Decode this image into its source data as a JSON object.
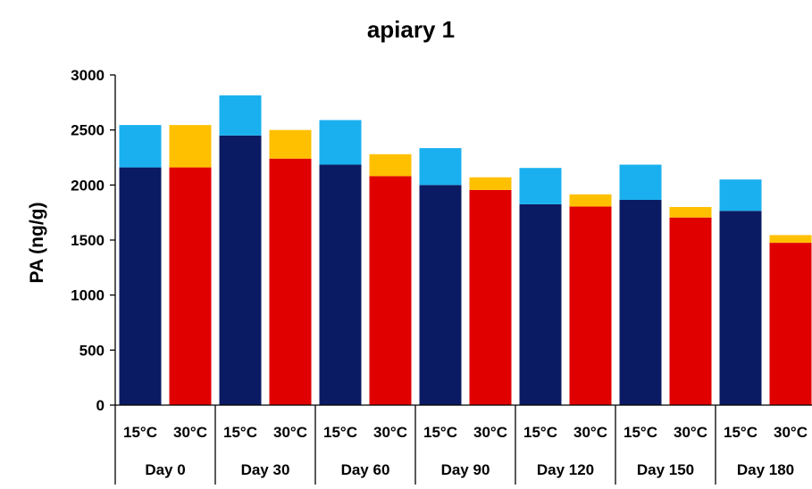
{
  "chart_data": {
    "type": "bar",
    "title": "apiary 1",
    "ylabel": "PA (ng/g)",
    "xlabel": "",
    "ylim": [
      0,
      3000
    ],
    "yticks": [
      0,
      500,
      1000,
      1500,
      2000,
      2500,
      3000
    ],
    "grid": false,
    "legend": "none",
    "groups": [
      "Day 0",
      "Day 30",
      "Day 60",
      "Day 90",
      "Day 120",
      "Day 150",
      "Day 180"
    ],
    "sub_categories": [
      "15°C",
      "30°C"
    ],
    "bars": [
      {
        "group": "Day 0",
        "temp": "15°C",
        "base": 2160,
        "total": 2545
      },
      {
        "group": "Day 0",
        "temp": "30°C",
        "base": 2160,
        "total": 2545
      },
      {
        "group": "Day 30",
        "temp": "15°C",
        "base": 2450,
        "total": 2815
      },
      {
        "group": "Day 30",
        "temp": "30°C",
        "base": 2240,
        "total": 2500
      },
      {
        "group": "Day 60",
        "temp": "15°C",
        "base": 2185,
        "total": 2590
      },
      {
        "group": "Day 60",
        "temp": "30°C",
        "base": 2080,
        "total": 2280
      },
      {
        "group": "Day 90",
        "temp": "15°C",
        "base": 2000,
        "total": 2335
      },
      {
        "group": "Day 90",
        "temp": "30°C",
        "base": 1955,
        "total": 2070
      },
      {
        "group": "Day 120",
        "temp": "15°C",
        "base": 1825,
        "total": 2155
      },
      {
        "group": "Day 120",
        "temp": "30°C",
        "base": 1805,
        "total": 1915
      },
      {
        "group": "Day 150",
        "temp": "15°C",
        "base": 1865,
        "total": 2185
      },
      {
        "group": "Day 150",
        "temp": "30°C",
        "base": 1705,
        "total": 1800
      },
      {
        "group": "Day 180",
        "temp": "15°C",
        "base": 1765,
        "total": 2050
      },
      {
        "group": "Day 180",
        "temp": "30°C",
        "base": 1475,
        "total": 1545
      }
    ],
    "colors": {
      "15°C": {
        "base": "#0b1b63",
        "top": "#1ab0ef"
      },
      "30°C": {
        "base": "#e00000",
        "top": "#ffc000"
      },
      "axis": "#000000"
    }
  }
}
